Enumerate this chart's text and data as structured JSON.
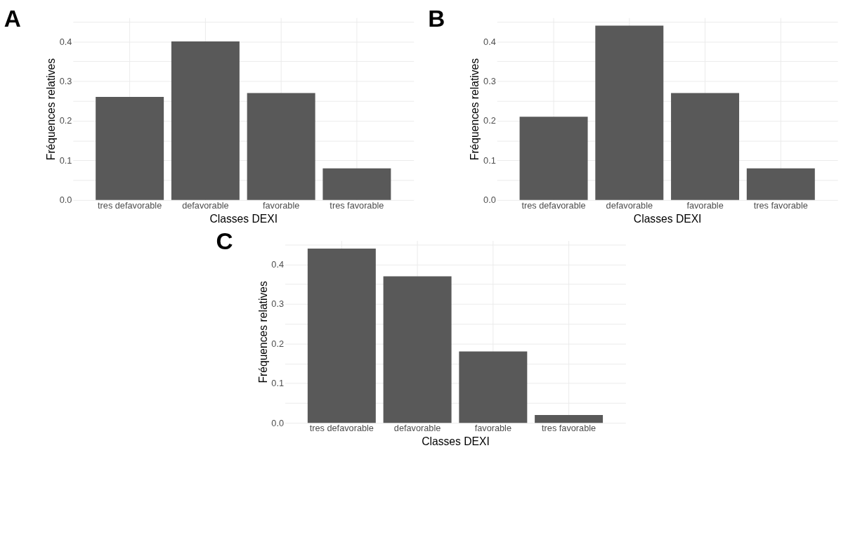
{
  "chart_data": [
    {
      "type": "bar",
      "title": "A",
      "xlabel": "Classes DEXI",
      "ylabel": "Fréquences relatives",
      "categories": [
        "tres defavorable",
        "defavorable",
        "favorable",
        "tres favorable"
      ],
      "values": [
        0.26,
        0.4,
        0.27,
        0.08
      ],
      "color": "#595959",
      "ylim": [
        0,
        0.46
      ],
      "yticks": [
        {
          "value": 0.0,
          "label": "0.0"
        },
        {
          "value": 0.05,
          "label": null
        },
        {
          "value": 0.1,
          "label": "0.1"
        },
        {
          "value": 0.15,
          "label": null
        },
        {
          "value": 0.2,
          "label": "0.2"
        },
        {
          "value": 0.25,
          "label": null
        },
        {
          "value": 0.3,
          "label": "0.3"
        },
        {
          "value": 0.35,
          "label": null
        },
        {
          "value": 0.4,
          "label": "0.4"
        },
        {
          "value": 0.45,
          "label": null
        }
      ],
      "grid": true
    },
    {
      "type": "bar",
      "title": "B",
      "xlabel": "Classes DEXI",
      "ylabel": "Fréquences relatives",
      "categories": [
        "tres defavorable",
        "defavorable",
        "favorable",
        "tres favorable"
      ],
      "values": [
        0.21,
        0.44,
        0.27,
        0.08
      ],
      "color": "#595959",
      "ylim": [
        0,
        0.46
      ],
      "yticks": [
        {
          "value": 0.0,
          "label": "0.0"
        },
        {
          "value": 0.05,
          "label": null
        },
        {
          "value": 0.1,
          "label": "0.1"
        },
        {
          "value": 0.15,
          "label": null
        },
        {
          "value": 0.2,
          "label": "0.2"
        },
        {
          "value": 0.25,
          "label": null
        },
        {
          "value": 0.3,
          "label": "0.3"
        },
        {
          "value": 0.35,
          "label": null
        },
        {
          "value": 0.4,
          "label": "0.4"
        },
        {
          "value": 0.45,
          "label": null
        }
      ],
      "grid": true
    },
    {
      "type": "bar",
      "title": "C",
      "xlabel": "Classes DEXI",
      "ylabel": "Fréquences relatives",
      "categories": [
        "tres defavorable",
        "defavorable",
        "favorable",
        "tres favorable"
      ],
      "values": [
        0.44,
        0.37,
        0.18,
        0.02
      ],
      "color": "#595959",
      "ylim": [
        0,
        0.46
      ],
      "yticks": [
        {
          "value": 0.0,
          "label": "0.0"
        },
        {
          "value": 0.05,
          "label": null
        },
        {
          "value": 0.1,
          "label": "0.1"
        },
        {
          "value": 0.15,
          "label": null
        },
        {
          "value": 0.2,
          "label": "0.2"
        },
        {
          "value": 0.25,
          "label": null
        },
        {
          "value": 0.3,
          "label": "0.3"
        },
        {
          "value": 0.35,
          "label": null
        },
        {
          "value": 0.4,
          "label": "0.4"
        },
        {
          "value": 0.45,
          "label": null
        }
      ],
      "grid": true
    }
  ]
}
